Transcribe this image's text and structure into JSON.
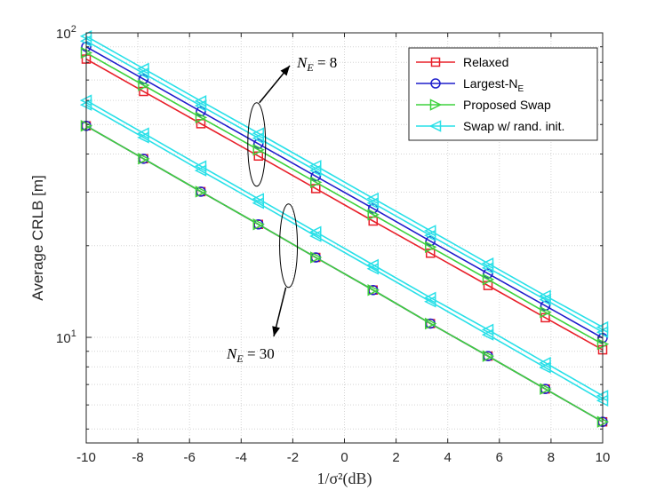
{
  "chart_data": {
    "type": "line",
    "title": "",
    "xlabel": "1/σ²(dB)",
    "ylabel": "Average CRLB [m]",
    "xlim": [
      -10,
      10
    ],
    "ylim": [
      4.5,
      100
    ],
    "yscale": "log",
    "grid": true,
    "legend_position": "top-right",
    "x": [
      -10,
      -7.78,
      -5.56,
      -3.33,
      -1.11,
      1.11,
      3.33,
      5.56,
      7.78,
      10
    ],
    "x_tick_labels": [
      "-10",
      "-8",
      "-6",
      "-4",
      "-2",
      "0",
      "2",
      "4",
      "6",
      "8",
      "10"
    ],
    "y_tick_labels": [
      {
        "value": 10,
        "base": "10",
        "exp": "1"
      },
      {
        "value": 100,
        "base": "10",
        "exp": "2"
      }
    ],
    "series": [
      {
        "name": "Relaxed",
        "name_sub": "",
        "color": "#e8202a",
        "marker": "square",
        "group": "NE8",
        "values": [
          82,
          64.2,
          50.3,
          39.4,
          30.8,
          24.1,
          18.9,
          14.8,
          11.6,
          9.1
        ]
      },
      {
        "name": "Largest-N",
        "name_sub": "E",
        "color": "#1f1fcc",
        "marker": "circle",
        "group": "NE8",
        "values": [
          90,
          70.5,
          55.2,
          43.2,
          33.8,
          26.5,
          20.7,
          16.2,
          12.7,
          9.95
        ]
      },
      {
        "name": "Proposed Swap",
        "name_sub": "",
        "color": "#3ed23e",
        "marker": "triangle-right",
        "group": "NE8",
        "values": [
          86,
          67.3,
          52.7,
          41.3,
          32.3,
          25.3,
          19.8,
          15.5,
          12.1,
          9.5
        ]
      },
      {
        "name": "Swap w/ rand. init.",
        "name_sub": "",
        "color": "#29e0e8",
        "marker": "triangle-left",
        "group": "NE8",
        "values": [
          94,
          73.6,
          57.6,
          45.1,
          35.3,
          27.6,
          21.6,
          16.9,
          13.3,
          10.4
        ]
      },
      {
        "name": "Swap w/ rand. init.",
        "name_sub": "",
        "color": "#29e0e8",
        "marker": "triangle-left",
        "group": "NE8-b",
        "values": [
          97.5,
          76.3,
          59.7,
          46.8,
          36.6,
          28.6,
          22.4,
          17.5,
          13.7,
          10.8
        ]
      },
      {
        "name": "Relaxed",
        "name_sub": "",
        "color": "#e8202a",
        "marker": "square",
        "group": "NE30",
        "values": [
          49.5,
          38.6,
          30.1,
          23.5,
          18.3,
          14.3,
          11.1,
          8.68,
          6.77,
          5.28
        ]
      },
      {
        "name": "Largest-N",
        "name_sub": "E",
        "color": "#1f1fcc",
        "marker": "circle",
        "group": "NE30",
        "values": [
          49.5,
          38.6,
          30.1,
          23.5,
          18.3,
          14.3,
          11.1,
          8.68,
          6.77,
          5.28
        ]
      },
      {
        "name": "Proposed Swap",
        "name_sub": "",
        "color": "#3ed23e",
        "marker": "triangle-right",
        "group": "NE30",
        "values": [
          49.5,
          38.6,
          30.1,
          23.5,
          18.3,
          14.3,
          11.1,
          8.68,
          6.77,
          5.28
        ]
      },
      {
        "name": "Swap w/ rand. init.",
        "name_sub": "",
        "color": "#29e0e8",
        "marker": "triangle-left",
        "group": "NE30",
        "values": [
          58,
          45.3,
          35.3,
          27.6,
          21.5,
          16.8,
          13.1,
          10.2,
          7.96,
          6.2
        ]
      },
      {
        "name": "Swap w/ rand. init.",
        "name_sub": "",
        "color": "#29e0e8",
        "marker": "triangle-left",
        "group": "NE30-b",
        "values": [
          60,
          46.8,
          36.5,
          28.5,
          22.2,
          17.3,
          13.5,
          10.6,
          8.25,
          6.43
        ]
      }
    ],
    "legend": [
      {
        "label": "Relaxed",
        "sub": "",
        "color": "#e8202a",
        "marker": "square"
      },
      {
        "label": "Largest-N",
        "sub": "E",
        "color": "#1f1fcc",
        "marker": "circle"
      },
      {
        "label": "Proposed Swap",
        "sub": "",
        "color": "#3ed23e",
        "marker": "triangle-right"
      },
      {
        "label": "Swap w/ rand. init.",
        "sub": "",
        "color": "#29e0e8",
        "marker": "triangle-left"
      }
    ],
    "annotations": [
      {
        "id": "ne8",
        "text": "N_E = 8",
        "main": "N",
        "sub": "E",
        "rest": " = 8",
        "target_x": -3.33,
        "target_y": 43
      },
      {
        "id": "ne30",
        "text": "N_E = 30",
        "main": "N",
        "sub": "E",
        "rest": " = 30",
        "target_x": -2.2,
        "target_y": 20
      }
    ]
  }
}
